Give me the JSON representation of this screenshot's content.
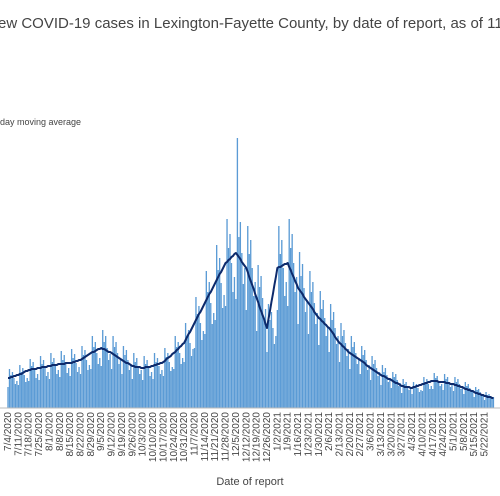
{
  "chart_data": {
    "type": "bar",
    "title": "ew COVID-19 cases in Lexington-Fayette County, by date of report, as of 11/",
    "x_label": "Date of report",
    "ylim": [
      0,
      280
    ],
    "categories": [
      "7/4/2020",
      null,
      null,
      null,
      null,
      null,
      null,
      "7/11/2020",
      null,
      null,
      null,
      null,
      null,
      null,
      "7/18/2020",
      null,
      null,
      null,
      null,
      null,
      null,
      "7/25/2020",
      null,
      null,
      null,
      null,
      null,
      null,
      "8/1/2020",
      null,
      null,
      null,
      null,
      null,
      null,
      "8/8/2020",
      null,
      null,
      null,
      null,
      null,
      null,
      "8/15/2020",
      null,
      null,
      null,
      null,
      null,
      null,
      "8/22/2020",
      null,
      null,
      null,
      null,
      null,
      null,
      "8/29/2020",
      null,
      null,
      null,
      null,
      null,
      null,
      "9/5/2020",
      null,
      null,
      null,
      null,
      null,
      null,
      "9/12/2020",
      null,
      null,
      null,
      null,
      null,
      null,
      "9/19/2020",
      null,
      null,
      null,
      null,
      null,
      null,
      "9/26/2020",
      null,
      null,
      null,
      null,
      null,
      null,
      "10/3/2020",
      null,
      null,
      null,
      null,
      null,
      null,
      "10/10/2020",
      null,
      null,
      null,
      null,
      null,
      null,
      "10/17/2020",
      null,
      null,
      null,
      null,
      null,
      null,
      "10/24/2020",
      null,
      null,
      null,
      null,
      null,
      null,
      "10/31/2020",
      null,
      null,
      null,
      null,
      null,
      null,
      "11/7/2020",
      null,
      null,
      null,
      null,
      null,
      null,
      "11/14/2020",
      null,
      null,
      null,
      null,
      null,
      null,
      "11/21/2020",
      null,
      null,
      null,
      null,
      null,
      null,
      "11/28/2020",
      null,
      null,
      null,
      null,
      null,
      null,
      "12/5/2020",
      null,
      null,
      null,
      null,
      null,
      null,
      "12/12/2020",
      null,
      null,
      null,
      null,
      null,
      null,
      "12/19/2020",
      null,
      null,
      null,
      null,
      null,
      null,
      "12/26/2020",
      null,
      null,
      null,
      null,
      null,
      null,
      "1/2/2021",
      null,
      null,
      null,
      null,
      null,
      null,
      "1/9/2021",
      null,
      null,
      null,
      null,
      null,
      null,
      "1/16/2021",
      null,
      null,
      null,
      null,
      null,
      null,
      "1/23/2021",
      null,
      null,
      null,
      null,
      null,
      null,
      "1/30/2021",
      null,
      null,
      null,
      null,
      null,
      null,
      "2/6/2021",
      null,
      null,
      null,
      null,
      null,
      null,
      "2/13/2021",
      null,
      null,
      null,
      null,
      null,
      null,
      "2/20/2021",
      null,
      null,
      null,
      null,
      null,
      null,
      "2/27/2021",
      null,
      null,
      null,
      null,
      null,
      null,
      "3/6/2021",
      null,
      null,
      null,
      null,
      null,
      null,
      "3/13/2021",
      null,
      null,
      null,
      null,
      null,
      null,
      "3/20/2021",
      null,
      null,
      null,
      null,
      null,
      null,
      "3/27/2021",
      null,
      null,
      null,
      null,
      null,
      null,
      "4/3/2021",
      null,
      null,
      null,
      null,
      null,
      null,
      "4/10/2021",
      null,
      null,
      null,
      null,
      null,
      null,
      "4/17/2021",
      null,
      null,
      null,
      null,
      null,
      null,
      "4/24/2021",
      null,
      null,
      null,
      null,
      null,
      null,
      "5/1/2021",
      null,
      null,
      null,
      null,
      null,
      null,
      "5/8/2021",
      null,
      null,
      null,
      null,
      null,
      null,
      "5/15/2021",
      null,
      null,
      null,
      null,
      null,
      null,
      "5/22/2021",
      null,
      null,
      null,
      null,
      null,
      null
    ],
    "series": [
      {
        "color": "#5b9bd5",
        "values": [
          21,
          39,
          33,
          36,
          30,
          24,
          27,
          23,
          43,
          36,
          40,
          33,
          26,
          30,
          27,
          49,
          42,
          46,
          38,
          30,
          34,
          28,
          52,
          44,
          48,
          40,
          32,
          36,
          29,
          55,
          46,
          50,
          42,
          34,
          38,
          31,
          57,
          48,
          53,
          44,
          35,
          40,
          32,
          59,
          50,
          54,
          45,
          36,
          41,
          34,
          62,
          53,
          58,
          48,
          38,
          43,
          39,
          72,
          61,
          66,
          55,
          44,
          50,
          42,
          78,
          66,
          72,
          60,
          48,
          54,
          39,
          72,
          61,
          66,
          55,
          44,
          50,
          34,
          62,
          53,
          58,
          48,
          38,
          43,
          29,
          55,
          46,
          50,
          42,
          34,
          38,
          28,
          52,
          44,
          48,
          40,
          32,
          36,
          29,
          55,
          46,
          50,
          42,
          34,
          38,
          32,
          60,
          51,
          55,
          46,
          37,
          41,
          39,
          72,
          61,
          66,
          55,
          44,
          50,
          46,
          85,
          72,
          78,
          65,
          52,
          59,
          60,
          111,
          94,
          102,
          85,
          68,
          77,
          74,
          137,
          116,
          126,
          105,
          84,
          95,
          88,
          163,
          138,
          150,
          125,
          100,
          113,
          102,
          189,
          160,
          174,
          145,
          116,
          131,
          109,
          270,
          171,
          186,
          155,
          124,
          140,
          98,
          182,
          154,
          168,
          140,
          112,
          126,
          77,
          143,
          121,
          132,
          110,
          88,
          99,
          56,
          104,
          88,
          96,
          80,
          64,
          72,
          98,
          182,
          154,
          168,
          140,
          112,
          126,
          102,
          189,
          160,
          174,
          145,
          116,
          131,
          84,
          156,
          132,
          144,
          120,
          96,
          108,
          74,
          137,
          116,
          126,
          105,
          84,
          95,
          63,
          117,
          99,
          108,
          90,
          72,
          81,
          56,
          104,
          88,
          96,
          80,
          64,
          72,
          46,
          85,
          72,
          78,
          65,
          52,
          59,
          39,
          72,
          61,
          66,
          55,
          44,
          50,
          34,
          62,
          53,
          58,
          48,
          38,
          43,
          28,
          52,
          44,
          48,
          40,
          32,
          36,
          23,
          43,
          36,
          40,
          33,
          26,
          30,
          20,
          36,
          31,
          34,
          28,
          22,
          25,
          15,
          29,
          24,
          26,
          22,
          18,
          20,
          14,
          26,
          22,
          24,
          20,
          16,
          18,
          17,
          31,
          26,
          29,
          24,
          19,
          22,
          19,
          35,
          30,
          32,
          27,
          22,
          24,
          18,
          34,
          29,
          31,
          26,
          21,
          23,
          17,
          31,
          26,
          29,
          24,
          19,
          22,
          14,
          26,
          22,
          24,
          20,
          16,
          18,
          11,
          21,
          18,
          19,
          16,
          13,
          14,
          8,
          16,
          13,
          14,
          12,
          10,
          11
        ]
      },
      {
        "name": "day moving average",
        "color": "#0d2a6b",
        "type": "line",
        "values": [
          30,
          30,
          31,
          31,
          32,
          32,
          33,
          33,
          34,
          34,
          35,
          36,
          37,
          37,
          38,
          38,
          39,
          39,
          39,
          39,
          40,
          40,
          40,
          41,
          41,
          41,
          41,
          42,
          42,
          42,
          43,
          43,
          43,
          43,
          44,
          44,
          44,
          44,
          44,
          45,
          45,
          45,
          45,
          45,
          46,
          46,
          47,
          47,
          48,
          48,
          49,
          50,
          51,
          52,
          53,
          54,
          55,
          56,
          56,
          57,
          58,
          59,
          59,
          60,
          59,
          59,
          58,
          57,
          56,
          56,
          55,
          54,
          53,
          52,
          51,
          50,
          49,
          48,
          47,
          46,
          45,
          45,
          44,
          43,
          42,
          42,
          41,
          41,
          41,
          41,
          40,
          40,
          40,
          41,
          41,
          41,
          41,
          42,
          42,
          43,
          43,
          44,
          44,
          45,
          45,
          46,
          47,
          49,
          50,
          51,
          52,
          54,
          55,
          56,
          58,
          59,
          61,
          62,
          64,
          65,
          68,
          71,
          74,
          76,
          79,
          82,
          85,
          88,
          91,
          94,
          96,
          99,
          102,
          105,
          108,
          111,
          114,
          116,
          119,
          122,
          125,
          128,
          131,
          134,
          136,
          139,
          142,
          145,
          146,
          148,
          149,
          151,
          152,
          154,
          155,
          153,
          151,
          149,
          146,
          144,
          142,
          140,
          136,
          131,
          127,
          123,
          119,
          114,
          110,
          106,
          101,
          97,
          93,
          89,
          84,
          80,
          89,
          97,
          106,
          114,
          123,
          131,
          140,
          141,
          141,
          142,
          143,
          144,
          144,
          145,
          141,
          138,
          134,
          131,
          127,
          124,
          120,
          118,
          116,
          114,
          111,
          109,
          107,
          105,
          103,
          101,
          99,
          96,
          94,
          92,
          90,
          89,
          87,
          86,
          84,
          83,
          81,
          80,
          78,
          76,
          74,
          71,
          69,
          67,
          65,
          64,
          62,
          61,
          59,
          58,
          56,
          55,
          54,
          53,
          52,
          51,
          50,
          49,
          48,
          47,
          46,
          45,
          43,
          42,
          41,
          40,
          39,
          38,
          37,
          36,
          35,
          34,
          33,
          32,
          32,
          31,
          30,
          29,
          29,
          28,
          27,
          26,
          25,
          25,
          24,
          23,
          22,
          22,
          21,
          21,
          21,
          21,
          20,
          20,
          21,
          21,
          22,
          22,
          23,
          23,
          24,
          24,
          25,
          25,
          26,
          26,
          27,
          27,
          27,
          27,
          27,
          26,
          26,
          26,
          26,
          26,
          25,
          25,
          25,
          24,
          24,
          24,
          23,
          23,
          22,
          22,
          21,
          21,
          20,
          19,
          19,
          18,
          18,
          17,
          17,
          16,
          15,
          15,
          14,
          14,
          13,
          13,
          12,
          12,
          11,
          11,
          11,
          10,
          10
        ]
      }
    ]
  }
}
